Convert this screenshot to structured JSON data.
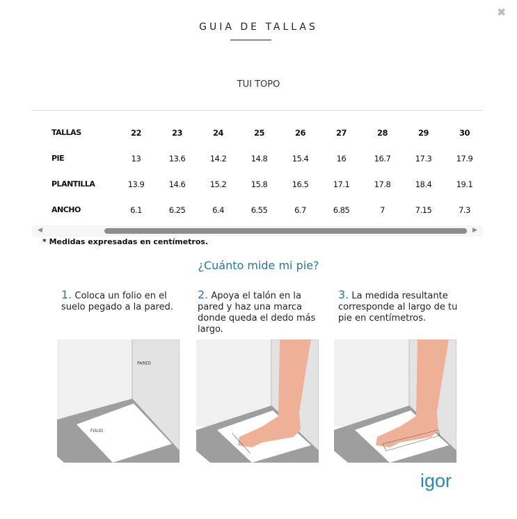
{
  "modal": {
    "title": "GUIA DE TALLAS",
    "close_icon": "close-icon",
    "product": "TUI TOPO"
  },
  "table": {
    "header": [
      "TALLAS",
      "22",
      "23",
      "24",
      "25",
      "26",
      "27",
      "28",
      "29",
      "30"
    ],
    "rows": [
      [
        "PIE",
        "13",
        "13.6",
        "14.2",
        "14.8",
        "15.4",
        "16",
        "16.7",
        "17.3",
        "17.9"
      ],
      [
        "PLANTILLA",
        "13.9",
        "14.6",
        "15.2",
        "15.8",
        "16.5",
        "17.1",
        "17.8",
        "18.4",
        "19.1"
      ],
      [
        "ANCHO",
        "6.1",
        "6.25",
        "6.4",
        "6.55",
        "6.7",
        "6.85",
        "7",
        "7.15",
        "7.3"
      ]
    ]
  },
  "note": "* Medidas expresadas en centímetros.",
  "how": {
    "title": "¿Cuánto mide mi pie?",
    "steps": [
      {
        "num": "1.",
        "text": "Coloca un folio en el suelo pegado a la pared."
      },
      {
        "num": "2.",
        "text": "Apoya el talón en la pared y haz una marca donde queda el dedo más largo."
      },
      {
        "num": "3.",
        "text": "La medida resultante corresponde al largo de tu pie en centímetros."
      }
    ],
    "labels": {
      "wall": "PARED",
      "paper": "FOLIO"
    }
  },
  "brand": "igor",
  "colors": {
    "accent": "#2a7891",
    "skin": "#eeb197",
    "floor": "#9e9e9e"
  }
}
